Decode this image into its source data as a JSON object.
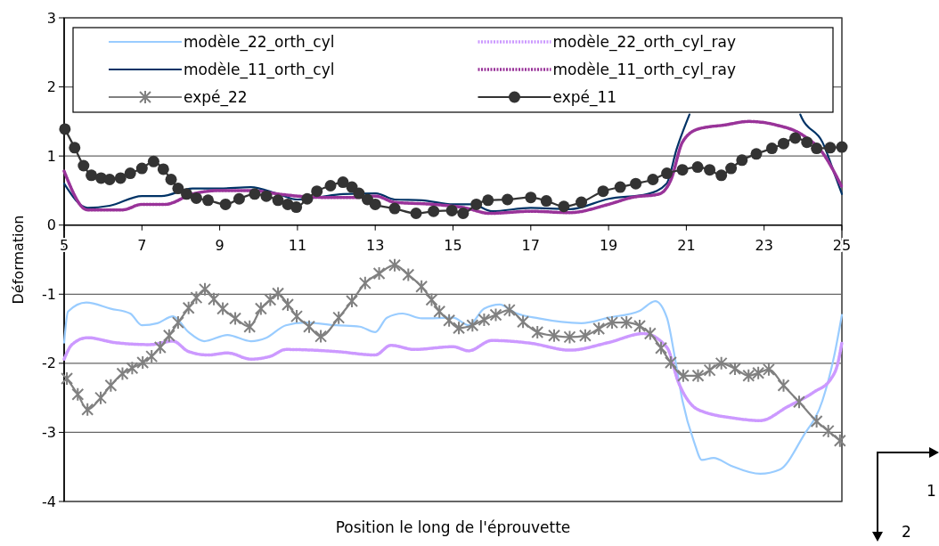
{
  "chart_data": {
    "type": "line",
    "xlabel": "Position le long de l'éprouvette",
    "ylabel": "Déformation",
    "xlim": [
      5,
      25
    ],
    "xticks": [
      5,
      7,
      9,
      11,
      13,
      15,
      17,
      19,
      21,
      23,
      25
    ],
    "ylim": [
      -4,
      3
    ],
    "yticks": [
      -4,
      -3,
      -2,
      -1,
      0,
      1,
      2,
      3
    ],
    "grid": "y",
    "legend": "top",
    "annotations": [
      "1",
      "2"
    ],
    "series": [
      {
        "name": "modèle_22_orth_cyl",
        "color": "#99ccff",
        "line_style": "solid",
        "marker": "none",
        "x": [
          5,
          5.1,
          5.57,
          6.2,
          6.7,
          7.0,
          7.4,
          7.8,
          8.2,
          8.6,
          9.2,
          9.8,
          10.2,
          10.7,
          11.2,
          12,
          12.6,
          13,
          13.3,
          13.7,
          14.2,
          15,
          15.4,
          15.8,
          16.2,
          16.6,
          17.2,
          18.3,
          19.0,
          19.8,
          20.2,
          20.5,
          20.7,
          20.9,
          21.2,
          21.4,
          21.7,
          22.14,
          22.9,
          23.4,
          24.0,
          24.5,
          24.8,
          25
        ],
        "values": [
          -1.7,
          -1.25,
          -1.12,
          -1.21,
          -1.28,
          -1.45,
          -1.42,
          -1.32,
          -1.55,
          -1.68,
          -1.59,
          -1.68,
          -1.63,
          -1.45,
          -1.41,
          -1.45,
          -1.47,
          -1.55,
          -1.34,
          -1.28,
          -1.35,
          -1.34,
          -1.45,
          -1.21,
          -1.15,
          -1.27,
          -1.35,
          -1.42,
          -1.34,
          -1.24,
          -1.1,
          -1.34,
          -1.9,
          -2.54,
          -3.14,
          -3.4,
          -3.37,
          -3.48,
          -3.6,
          -3.54,
          -3.06,
          -2.54,
          -1.9,
          -1.3
        ]
      },
      {
        "name": "modèle_22_orth_cyl_ray",
        "color": "#cc99ff",
        "line_style": "dotted",
        "marker": "none",
        "x": [
          5,
          5.2,
          5.6,
          6.3,
          7.2,
          7.8,
          8.2,
          8.7,
          9.2,
          9.8,
          10.3,
          10.7,
          12,
          13,
          13.4,
          14,
          15,
          15.4,
          16,
          17,
          18,
          19,
          19.9,
          20.5,
          20.8,
          21.3,
          22.3,
          22.9,
          23.6,
          24.3,
          24.7,
          24.9,
          25
        ],
        "values": [
          -1.94,
          -1.73,
          -1.63,
          -1.7,
          -1.73,
          -1.68,
          -1.83,
          -1.88,
          -1.85,
          -1.94,
          -1.9,
          -1.8,
          -1.83,
          -1.88,
          -1.74,
          -1.8,
          -1.76,
          -1.82,
          -1.67,
          -1.71,
          -1.81,
          -1.7,
          -1.57,
          -1.77,
          -2.28,
          -2.67,
          -2.8,
          -2.83,
          -2.63,
          -2.41,
          -2.24,
          -1.99,
          -1.7
        ]
      },
      {
        "name": "modèle_11_orth_cyl",
        "color": "#003366",
        "line_style": "solid",
        "marker": "none",
        "x": [
          5,
          5.6,
          6.17,
          7,
          7.5,
          8.3,
          9,
          9.8,
          10.5,
          11,
          11.5,
          12.17,
          13.02,
          13.5,
          14.2,
          15,
          15.5,
          16,
          17,
          18,
          19,
          20,
          20.49,
          20.75,
          21.08,
          22.5,
          23.93,
          23.97,
          24.5,
          24.85,
          25
        ],
        "values": [
          0.6,
          0.25,
          0.28,
          0.42,
          0.42,
          0.53,
          0.53,
          0.55,
          0.45,
          0.37,
          0.4,
          0.45,
          0.46,
          0.37,
          0.36,
          0.3,
          0.3,
          0.2,
          0.25,
          0.23,
          0.38,
          0.45,
          0.6,
          1.1,
          1.6,
          null,
          1.6,
          1.55,
          1.2,
          0.68,
          0.45
        ]
      },
      {
        "name": "modèle_11_orth_cyl_ray",
        "color": "#993399",
        "line_style": "dotted",
        "marker": "none",
        "x": [
          5,
          5.6,
          6.5,
          7,
          7.6,
          8.3,
          9,
          9.8,
          10.5,
          11,
          11.7,
          12.5,
          13,
          13.5,
          14.5,
          15.3,
          15.95,
          17,
          18,
          19,
          19.6,
          20.3,
          20.6,
          20.9,
          21.3,
          22,
          22.6,
          23.3,
          24,
          24.5,
          24.8,
          25
        ],
        "values": [
          0.78,
          0.22,
          0.22,
          0.3,
          0.3,
          0.45,
          0.5,
          0.5,
          0.45,
          0.42,
          0.4,
          0.4,
          0.42,
          0.33,
          0.3,
          0.25,
          0.17,
          0.2,
          0.18,
          0.3,
          0.4,
          0.45,
          0.65,
          1.2,
          1.39,
          1.45,
          1.5,
          1.45,
          1.3,
          1.05,
          0.77,
          0.55
        ]
      },
      {
        "name": "expé_22",
        "color": "#808080",
        "line_style": "solid",
        "marker": "cross",
        "x": [
          5.07,
          5.35,
          5.6,
          5.94,
          6.2,
          6.5,
          6.75,
          7.02,
          7.25,
          7.47,
          7.7,
          7.93,
          8.2,
          8.4,
          8.62,
          8.85,
          9.08,
          9.4,
          9.77,
          10.06,
          10.3,
          10.5,
          10.75,
          10.98,
          11.3,
          11.6,
          12.06,
          12.4,
          12.74,
          13.1,
          13.5,
          13.85,
          14.19,
          14.45,
          14.65,
          14.9,
          15.15,
          15.5,
          15.8,
          16.1,
          16.45,
          16.8,
          17.17,
          17.6,
          18.0,
          18.4,
          18.75,
          19.09,
          19.46,
          19.8,
          20.07,
          20.35,
          20.6,
          20.92,
          21.3,
          21.6,
          21.9,
          22.25,
          22.6,
          22.85,
          23.12,
          23.5,
          23.9,
          24.35,
          24.65,
          24.95
        ],
        "values": [
          -2.22,
          -2.45,
          -2.67,
          -2.5,
          -2.32,
          -2.15,
          -2.07,
          -1.99,
          -1.9,
          -1.77,
          -1.6,
          -1.41,
          -1.2,
          -1.05,
          -0.93,
          -1.07,
          -1.21,
          -1.35,
          -1.47,
          -1.21,
          -1.08,
          -0.99,
          -1.15,
          -1.32,
          -1.47,
          -1.61,
          -1.34,
          -1.1,
          -0.84,
          -0.7,
          -0.58,
          -0.72,
          -0.89,
          -1.08,
          -1.25,
          -1.38,
          -1.49,
          -1.45,
          -1.37,
          -1.3,
          -1.23,
          -1.4,
          -1.55,
          -1.6,
          -1.62,
          -1.6,
          -1.5,
          -1.41,
          -1.41,
          -1.46,
          -1.57,
          -1.78,
          -1.99,
          -2.18,
          -2.18,
          -2.1,
          -2.0,
          -2.08,
          -2.18,
          -2.14,
          -2.09,
          -2.32,
          -2.56,
          -2.84,
          -2.98,
          -3.12
        ]
      },
      {
        "name": "expé_11",
        "color": "#333333",
        "line_style": "solid",
        "marker": "circle",
        "x": [
          5.02,
          5.27,
          5.5,
          5.7,
          5.95,
          6.17,
          6.45,
          6.7,
          7.0,
          7.3,
          7.55,
          7.75,
          7.93,
          8.15,
          8.4,
          8.7,
          9.15,
          9.5,
          9.9,
          10.2,
          10.5,
          10.75,
          10.97,
          11.25,
          11.5,
          11.85,
          12.17,
          12.4,
          12.58,
          12.8,
          13.0,
          13.5,
          14.05,
          14.5,
          14.97,
          15.26,
          15.6,
          15.9,
          16.4,
          17.0,
          17.4,
          17.85,
          18.3,
          18.86,
          19.3,
          19.7,
          20.14,
          20.5,
          20.9,
          21.29,
          21.6,
          21.9,
          22.15,
          22.43,
          22.8,
          23.2,
          23.5,
          23.8,
          24.1,
          24.35,
          24.7,
          25.0
        ],
        "values": [
          1.39,
          1.12,
          0.86,
          0.72,
          0.68,
          0.66,
          0.68,
          0.75,
          0.82,
          0.92,
          0.81,
          0.66,
          0.53,
          0.45,
          0.39,
          0.36,
          0.3,
          0.38,
          0.45,
          0.42,
          0.36,
          0.3,
          0.26,
          0.38,
          0.49,
          0.57,
          0.62,
          0.55,
          0.46,
          0.37,
          0.3,
          0.24,
          0.17,
          0.2,
          0.21,
          0.17,
          0.3,
          0.36,
          0.37,
          0.4,
          0.35,
          0.27,
          0.33,
          0.49,
          0.55,
          0.6,
          0.66,
          0.75,
          0.8,
          0.84,
          0.8,
          0.72,
          0.82,
          0.94,
          1.03,
          1.11,
          1.18,
          1.26,
          1.2,
          1.11,
          1.12,
          1.13
        ]
      }
    ]
  }
}
